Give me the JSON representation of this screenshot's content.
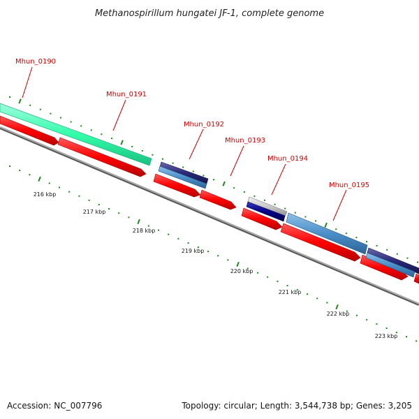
{
  "title": "Methanospirillum hungatei JF-1, complete genome",
  "accession_text": "Accession: NC_007796",
  "stats_text": "Topology: circular; Length: 3,544,738 bp; Genes: 3,205",
  "colors": {
    "cds_red": "#ff0000",
    "gene_green": "#33ffaa",
    "gene_steel": "#4a8fc8",
    "gene_navy": "#2a2a78",
    "gene_gray": "#c8c8c8",
    "label_red": "#cc0000",
    "tick_green": "#1a8a1a",
    "backbone_gray": "#808080"
  },
  "genes": [
    {
      "name": "Mhun_0190"
    },
    {
      "name": "Mhun_0191"
    },
    {
      "name": "Mhun_0192"
    },
    {
      "name": "Mhun_0193"
    },
    {
      "name": "Mhun_0194"
    },
    {
      "name": "Mhun_0195"
    }
  ],
  "scale_labels": [
    "216 kbp",
    "217 kbp",
    "218 kbp",
    "219 kbp",
    "220 kbp",
    "221 kbp",
    "222 kbp",
    "223 kbp"
  ]
}
